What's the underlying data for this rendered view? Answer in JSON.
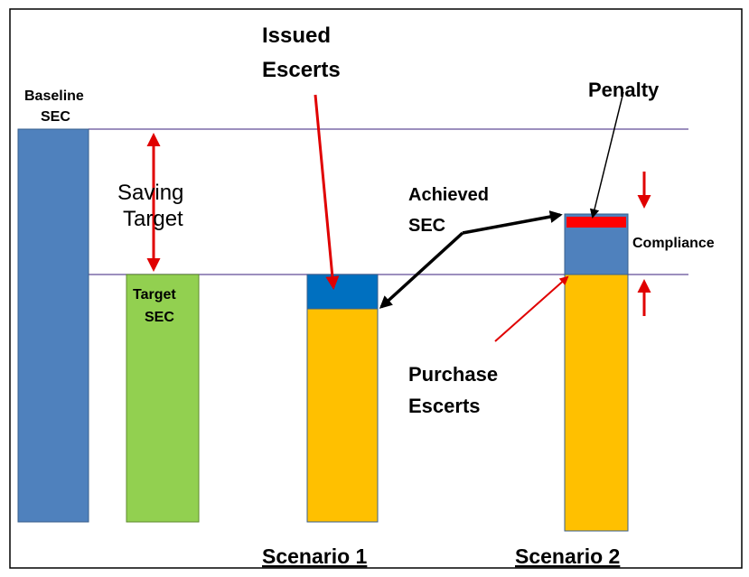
{
  "labels": {
    "issued_escerts": [
      "Issued",
      "Escerts"
    ],
    "baseline_sec": [
      "Baseline",
      "SEC"
    ],
    "penalty": "Penalty",
    "saving_target": [
      "Saving",
      "Target"
    ],
    "achieved_sec": [
      "Achieved",
      "SEC"
    ],
    "compliance": "Compliance",
    "target_sec": [
      "Target",
      "SEC"
    ],
    "purchase_escerts": [
      "Purchase",
      "Escerts"
    ],
    "scenario_1": "Scenario 1",
    "scenario_2": "Scenario 2"
  }
}
